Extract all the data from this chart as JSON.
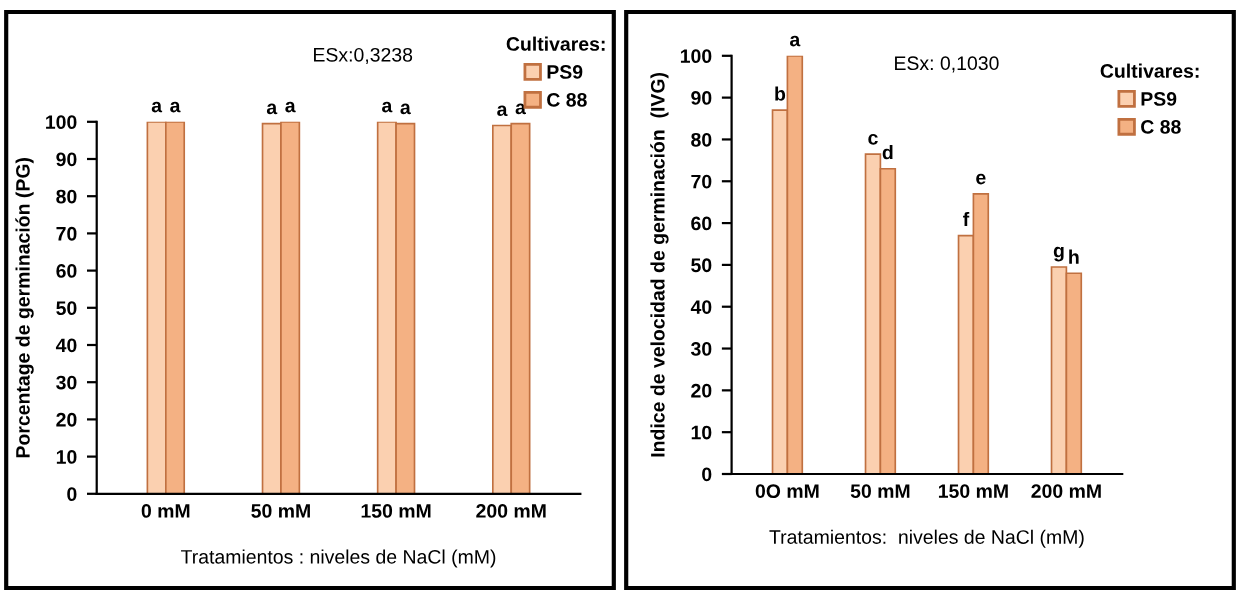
{
  "chart_data": [
    {
      "type": "bar",
      "categories": [
        "0 mM",
        "50 mM",
        "150 mM",
        "200 mM"
      ],
      "xlabel": "Tratamientos : niveles de NaCl (mM)",
      "ylabel": "Porcentage de germinación (PG)",
      "legend_title": "Cultivares:",
      "legend": "top right",
      "annotations": [
        "ESx:0,3238"
      ],
      "ylim": [
        0,
        100
      ],
      "yticks": [
        0,
        10,
        20,
        30,
        40,
        50,
        60,
        70,
        80,
        90,
        100
      ],
      "grid": false,
      "series": [
        {
          "name": "PS9",
          "color": "#fbd0b0",
          "values": [
            100,
            99.5,
            100,
            99
          ],
          "value_labels": [
            "a",
            "a",
            "a",
            "a"
          ]
        },
        {
          "name": "C 88",
          "color": "#f4b183",
          "values": [
            100,
            100,
            99.5,
            99.5
          ],
          "value_labels": [
            "a",
            "a",
            "a",
            "a"
          ]
        }
      ]
    },
    {
      "type": "bar",
      "categories": [
        "0O mM",
        "50 mM",
        "150 mM",
        "200 mM"
      ],
      "xlabel": "Tratamientos:  niveles de NaCl (mM)",
      "ylabel": "Indice de velocidad de germinación  (IVG)",
      "legend_title": "Cultivares:",
      "legend": "top right",
      "annotations": [
        "ESx: 0,1030"
      ],
      "ylim": [
        0,
        100
      ],
      "yticks": [
        0,
        10,
        20,
        30,
        40,
        50,
        60,
        70,
        80,
        90,
        100
      ],
      "grid": false,
      "series": [
        {
          "name": "PS9",
          "color": "#fbd0b0",
          "values": [
            87,
            76.5,
            57,
            49.5
          ],
          "value_labels": [
            "b",
            "c",
            "f",
            "g"
          ]
        },
        {
          "name": "C 88",
          "color": "#f4b183",
          "values": [
            100,
            73,
            67,
            48
          ],
          "value_labels": [
            "a",
            "d",
            "e",
            "h"
          ]
        }
      ]
    }
  ]
}
